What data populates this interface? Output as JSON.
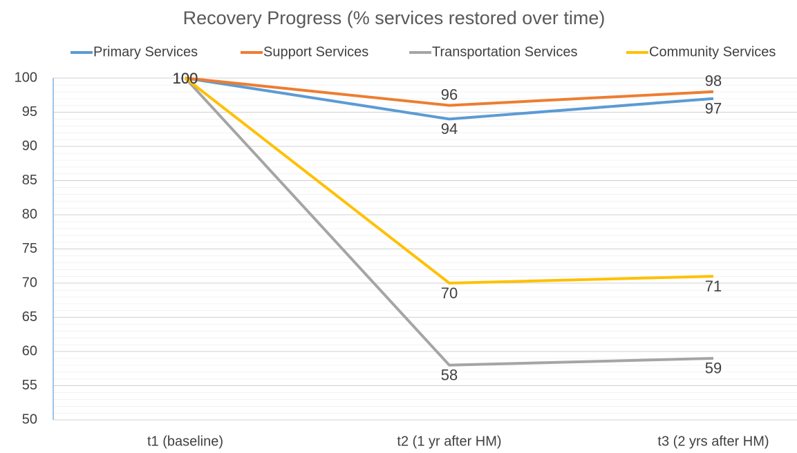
{
  "chart_data": {
    "type": "line",
    "title": "Recovery Progress (% services restored over time)",
    "categories": [
      "t1 (baseline)",
      "t2 (1 yr after HM)",
      "t3 (2 yrs after HM)"
    ],
    "series": [
      {
        "name": "Primary Services",
        "color": "#5b9bd5",
        "values": [
          100,
          94,
          97
        ]
      },
      {
        "name": "Support Services",
        "color": "#ed7d31",
        "values": [
          100,
          96,
          98
        ]
      },
      {
        "name": "Transportation Services",
        "color": "#a5a5a5",
        "values": [
          100,
          58,
          59
        ]
      },
      {
        "name": "Community Services",
        "color": "#ffc000",
        "values": [
          100,
          70,
          71
        ]
      }
    ],
    "ylim": [
      50,
      100
    ],
    "yticks": [
      50,
      55,
      60,
      65,
      70,
      75,
      80,
      85,
      90,
      95,
      100
    ],
    "grid": true,
    "legend": "top"
  }
}
